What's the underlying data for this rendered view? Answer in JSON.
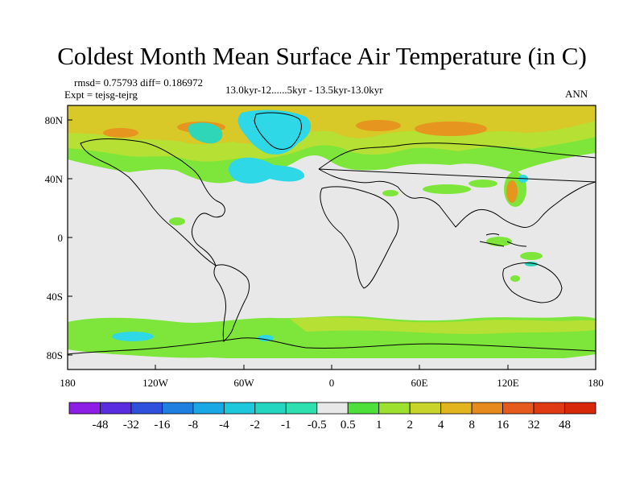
{
  "title": "Coldest Month Mean Surface Air Temperature (in C)",
  "stats": {
    "text": "rmsd= 0.75793 diff= 0.186972"
  },
  "experiment": {
    "text": "Expt = tejsg-tejrg"
  },
  "period": {
    "text": "13.0kyr-12......5kyr - 13.5kyr-13.0kyr"
  },
  "season": {
    "text": "ANN"
  },
  "axes": {
    "lon_ticks": [
      "180",
      "120W",
      "60W",
      "0",
      "60E",
      "120E",
      "180"
    ],
    "lat_ticks": [
      "80N",
      "40N",
      "0",
      "40S",
      "80S"
    ]
  },
  "colorbar": {
    "labels": [
      "-48",
      "-32",
      "-16",
      "-8",
      "-4",
      "-2",
      "-1",
      "-0.5",
      "0.5",
      "1",
      "2",
      "4",
      "8",
      "16",
      "32",
      "48"
    ],
    "colors": [
      "#8c1ee6",
      "#5a2ee0",
      "#2e50dc",
      "#1e7fe0",
      "#18a8e6",
      "#1ec8dc",
      "#24d6c0",
      "#2ee0b0",
      "#e8e8e8",
      "#4ee03a",
      "#9ee02e",
      "#c8d42a",
      "#e2b41e",
      "#e68a1e",
      "#e65a1e",
      "#e03a14",
      "#d8280a"
    ]
  },
  "field_colors": {
    "neutral": "#e8e8e8",
    "green": "#7ee63a",
    "lime": "#b6e034",
    "yellow": "#d8c828",
    "orange": "#e6961e",
    "cyan": "#2ed8e6",
    "teal": "#30d6b8"
  }
}
